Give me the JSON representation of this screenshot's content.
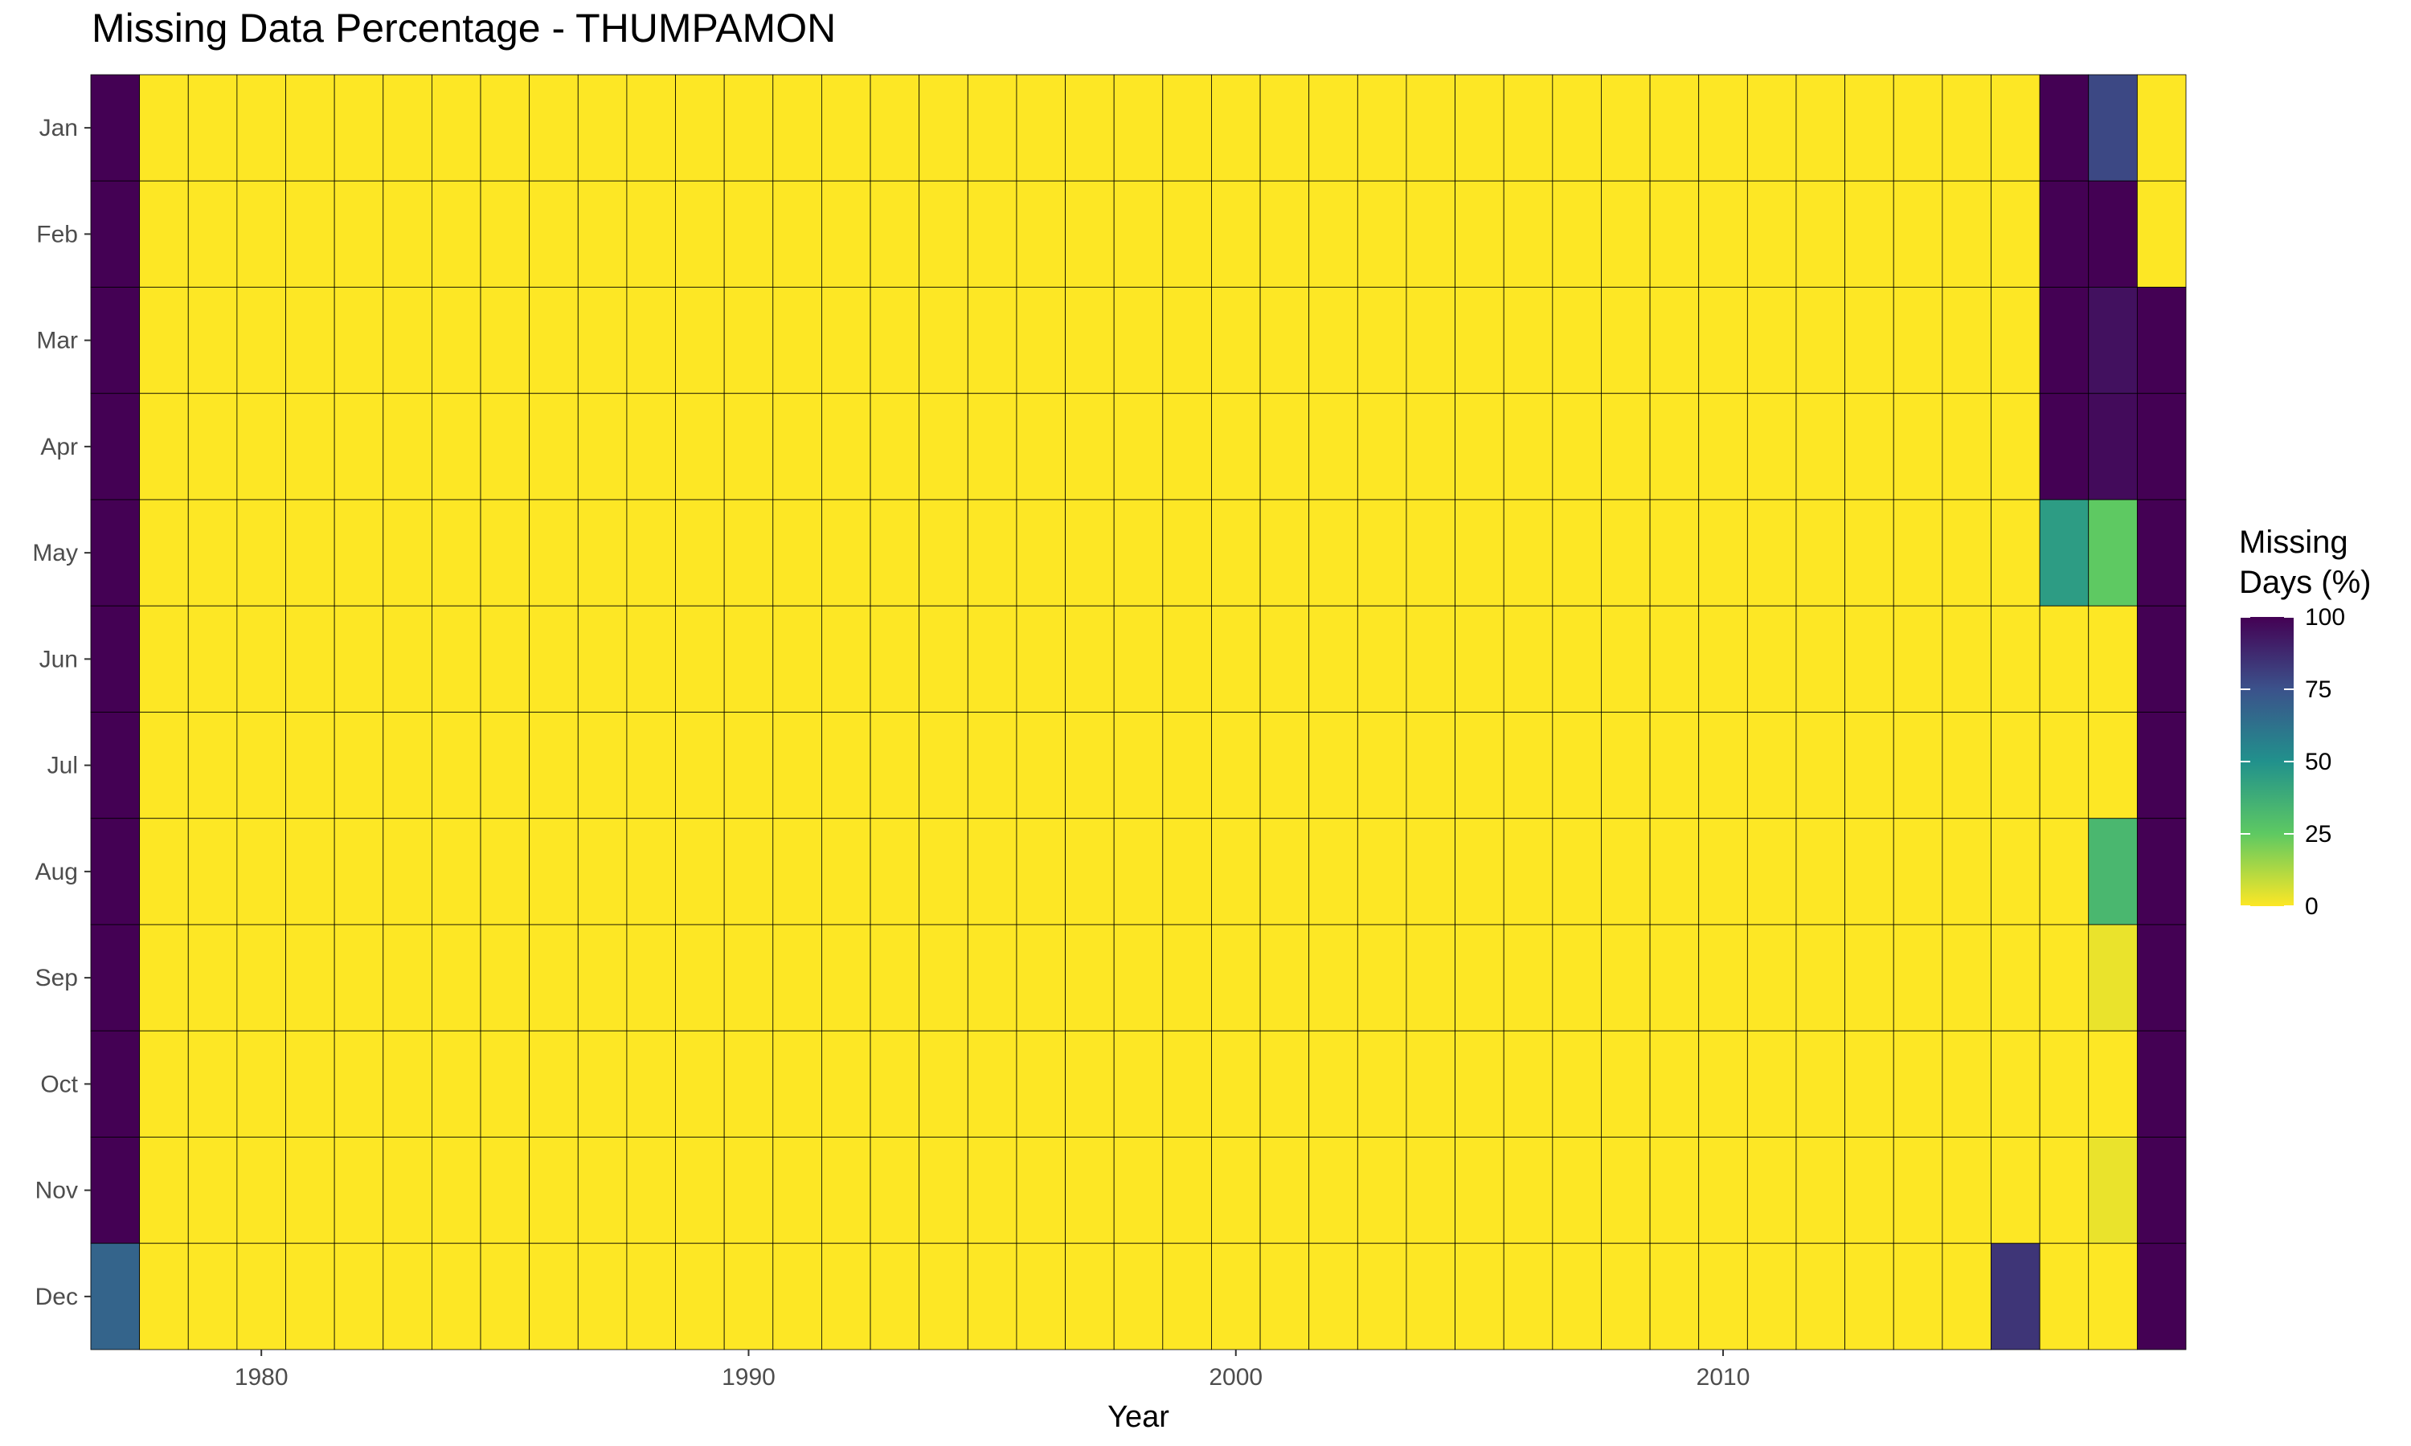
{
  "chart_data": {
    "type": "heatmap",
    "title": "Missing Data Percentage - THUMPAMON",
    "xlabel": "Year",
    "ylabel": "",
    "x_ticks": [
      1980,
      1990,
      2000,
      2010
    ],
    "years": [
      1977,
      2019
    ],
    "months": [
      "Jan",
      "Feb",
      "Mar",
      "Apr",
      "May",
      "Jun",
      "Jul",
      "Aug",
      "Sep",
      "Oct",
      "Nov",
      "Dec"
    ],
    "default_value": 0,
    "cells": [
      {
        "year": 1977,
        "month": "Jan",
        "value": 100
      },
      {
        "year": 1977,
        "month": "Feb",
        "value": 100
      },
      {
        "year": 1977,
        "month": "Mar",
        "value": 100
      },
      {
        "year": 1977,
        "month": "Apr",
        "value": 100
      },
      {
        "year": 1977,
        "month": "May",
        "value": 100
      },
      {
        "year": 1977,
        "month": "Jun",
        "value": 100
      },
      {
        "year": 1977,
        "month": "Jul",
        "value": 100
      },
      {
        "year": 1977,
        "month": "Aug",
        "value": 100
      },
      {
        "year": 1977,
        "month": "Sep",
        "value": 100
      },
      {
        "year": 1977,
        "month": "Oct",
        "value": 100
      },
      {
        "year": 1977,
        "month": "Nov",
        "value": 100
      },
      {
        "year": 1977,
        "month": "Dec",
        "value": 68
      },
      {
        "year": 2016,
        "month": "Dec",
        "value": 84
      },
      {
        "year": 2017,
        "month": "Jan",
        "value": 100
      },
      {
        "year": 2017,
        "month": "Feb",
        "value": 100
      },
      {
        "year": 2017,
        "month": "Mar",
        "value": 100
      },
      {
        "year": 2017,
        "month": "Apr",
        "value": 100
      },
      {
        "year": 2017,
        "month": "May",
        "value": 45
      },
      {
        "year": 2018,
        "month": "Jan",
        "value": 78
      },
      {
        "year": 2018,
        "month": "Feb",
        "value": 100
      },
      {
        "year": 2018,
        "month": "Mar",
        "value": 95
      },
      {
        "year": 2018,
        "month": "Apr",
        "value": 97
      },
      {
        "year": 2018,
        "month": "May",
        "value": 25
      },
      {
        "year": 2018,
        "month": "Aug",
        "value": 33
      },
      {
        "year": 2018,
        "month": "Sep",
        "value": 3
      },
      {
        "year": 2018,
        "month": "Nov",
        "value": 3
      },
      {
        "year": 2019,
        "month": "Mar",
        "value": 100
      },
      {
        "year": 2019,
        "month": "Apr",
        "value": 100
      },
      {
        "year": 2019,
        "month": "May",
        "value": 100
      },
      {
        "year": 2019,
        "month": "Jun",
        "value": 100
      },
      {
        "year": 2019,
        "month": "Jul",
        "value": 100
      },
      {
        "year": 2019,
        "month": "Aug",
        "value": 100
      },
      {
        "year": 2019,
        "month": "Sep",
        "value": 100
      },
      {
        "year": 2019,
        "month": "Oct",
        "value": 100
      },
      {
        "year": 2019,
        "month": "Nov",
        "value": 100
      },
      {
        "year": 2019,
        "month": "Dec",
        "value": 100
      }
    ],
    "color_scale": {
      "name": "viridis-reversed",
      "domain": [
        0,
        100
      ],
      "stops": [
        "#fde725",
        "#5ec962",
        "#21918c",
        "#3b528b",
        "#440154"
      ]
    },
    "legend": {
      "title_lines": [
        "Missing",
        "Days (%)"
      ],
      "ticks": [
        100,
        75,
        50,
        25,
        0
      ],
      "position": "right"
    },
    "grid": false,
    "cell_border_color": "#000000"
  }
}
